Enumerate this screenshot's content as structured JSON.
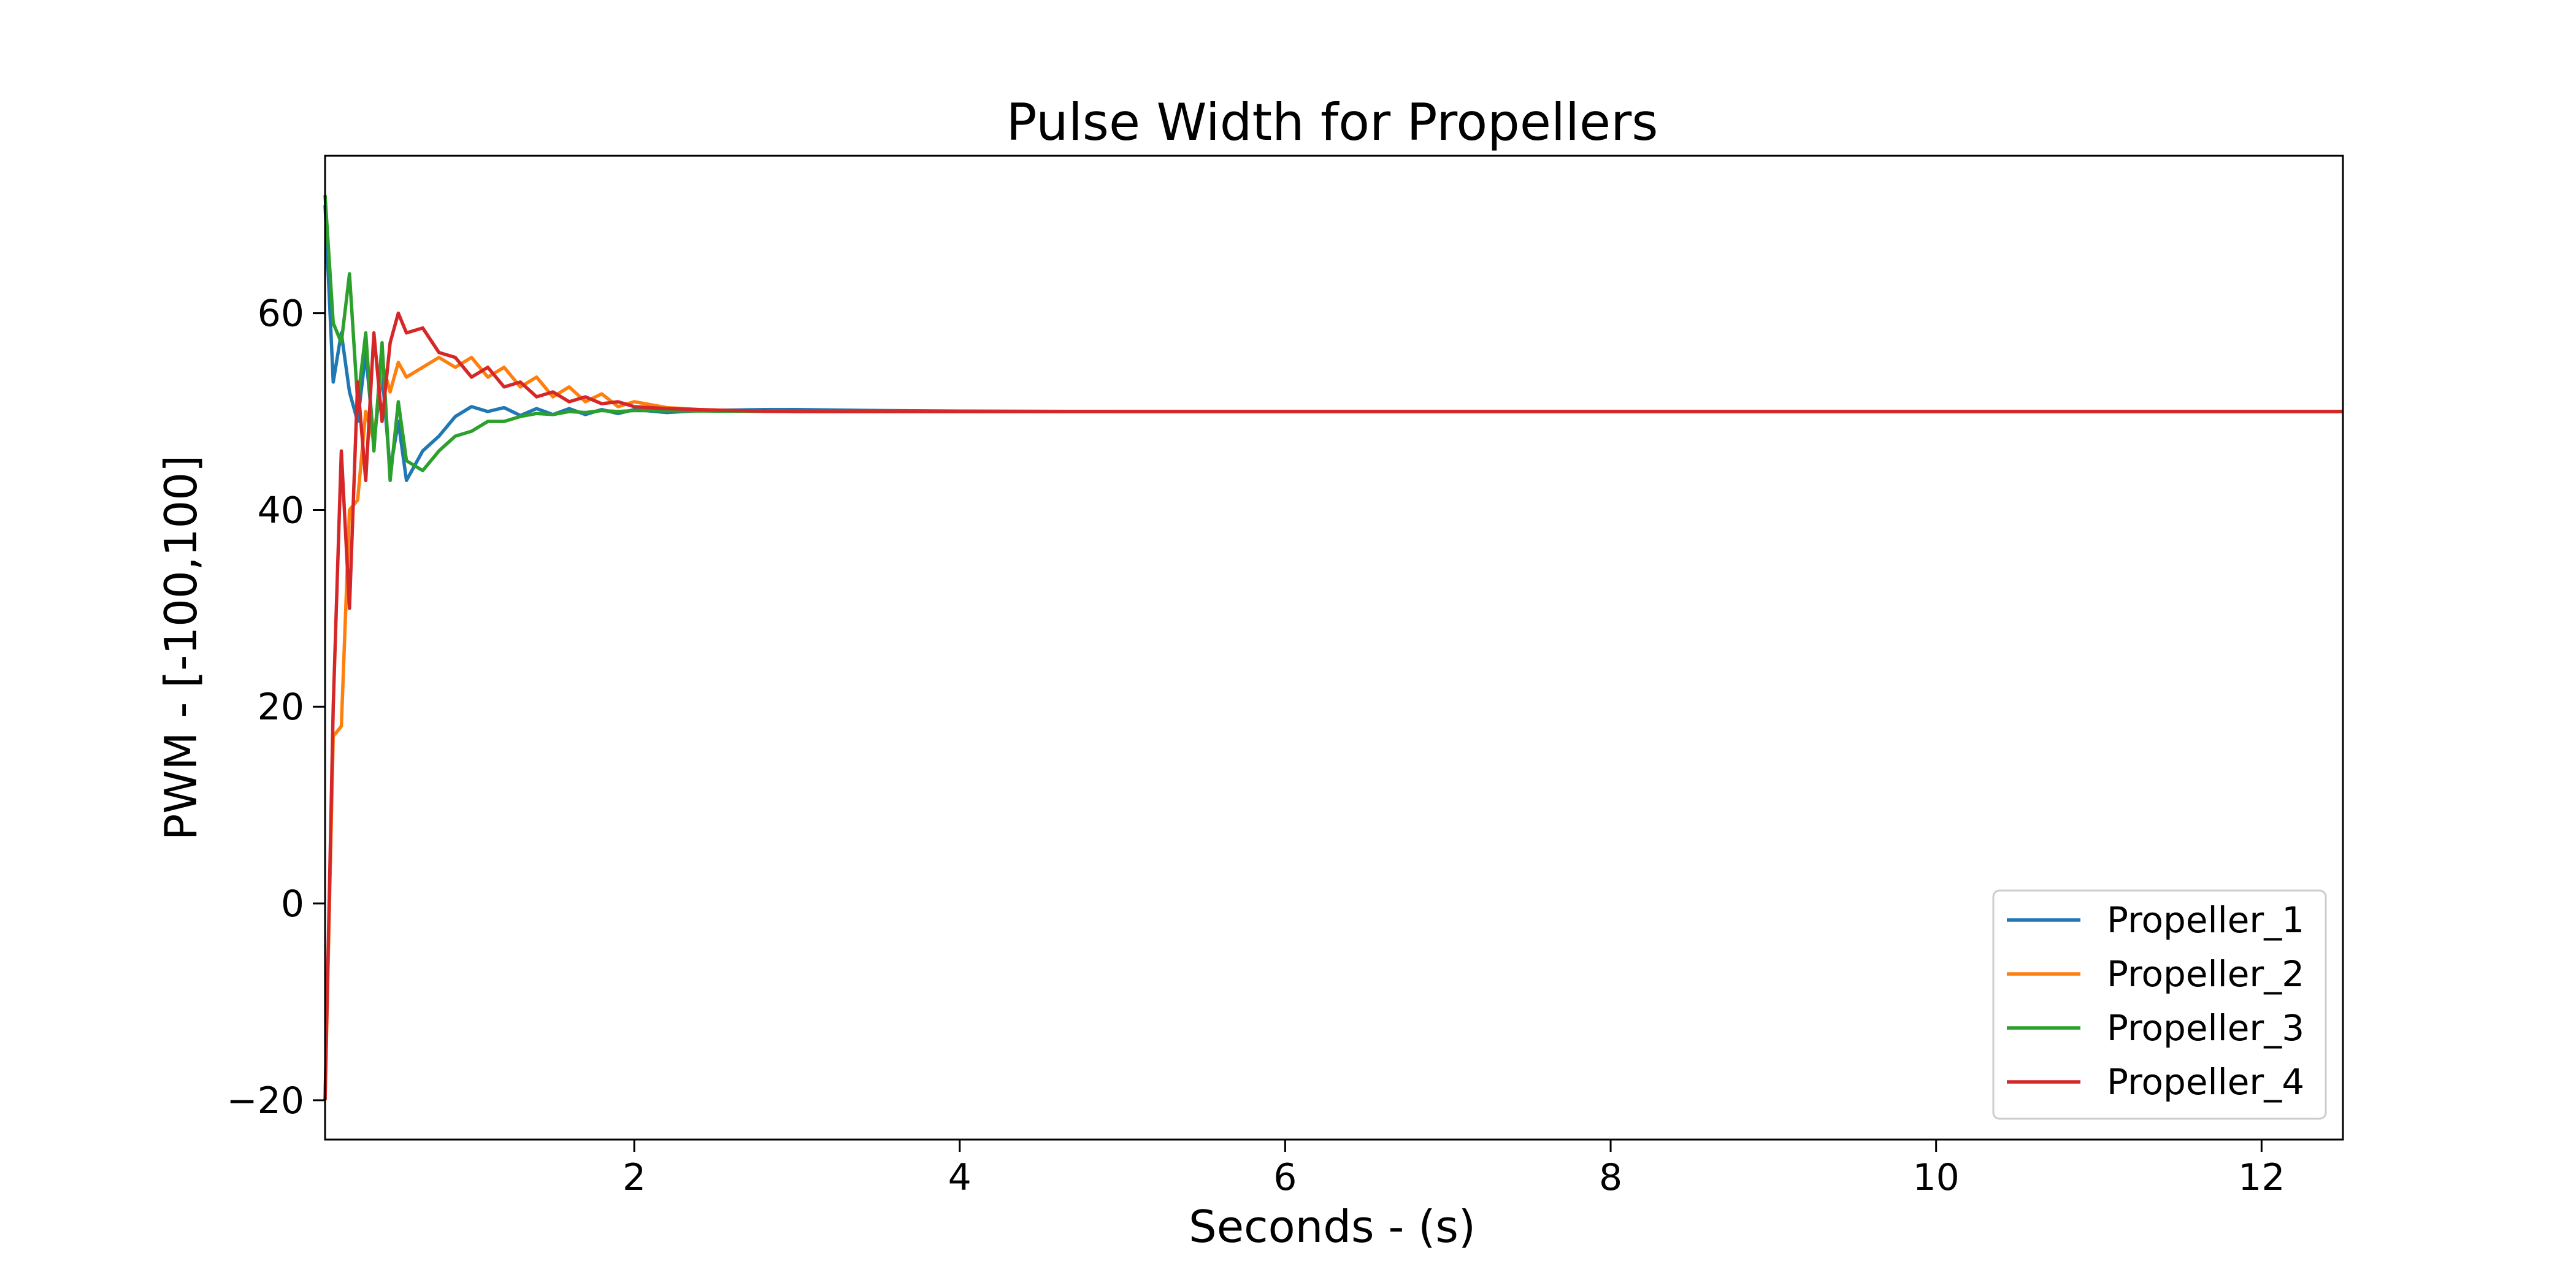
{
  "chart_data": {
    "type": "line",
    "title": "Pulse Width for Propellers",
    "xlabel": "Seconds - (s)",
    "ylabel": "PWM - [-100,100]",
    "xlim": [
      0.1,
      12.5
    ],
    "ylim": [
      -24,
      76
    ],
    "xticks": [
      2,
      4,
      6,
      8,
      10,
      12
    ],
    "yticks": [
      -20,
      0,
      20,
      40,
      60
    ],
    "xtick_labels": [
      "2",
      "4",
      "6",
      "8",
      "10",
      "12"
    ],
    "ytick_labels": [
      "−20",
      "0",
      "20",
      "40",
      "60"
    ],
    "grid": false,
    "legend_position": "bottom-right",
    "series": [
      {
        "name": "Propeller_1",
        "color": "#1f77b4",
        "points": [
          [
            0.1,
            71
          ],
          [
            0.15,
            53
          ],
          [
            0.2,
            58
          ],
          [
            0.25,
            52
          ],
          [
            0.3,
            49
          ],
          [
            0.35,
            56
          ],
          [
            0.4,
            47
          ],
          [
            0.45,
            54
          ],
          [
            0.5,
            44
          ],
          [
            0.55,
            49
          ],
          [
            0.6,
            43
          ],
          [
            0.7,
            46
          ],
          [
            0.8,
            47.5
          ],
          [
            0.9,
            49.5
          ],
          [
            1.0,
            50.5
          ],
          [
            1.1,
            50
          ],
          [
            1.2,
            50.4
          ],
          [
            1.3,
            49.6
          ],
          [
            1.4,
            50.3
          ],
          [
            1.5,
            49.7
          ],
          [
            1.6,
            50.3
          ],
          [
            1.7,
            49.7
          ],
          [
            1.8,
            50.2
          ],
          [
            1.9,
            49.8
          ],
          [
            2.0,
            50.2
          ],
          [
            2.2,
            49.9
          ],
          [
            2.4,
            50.1
          ],
          [
            2.6,
            50.15
          ],
          [
            2.8,
            50.2
          ],
          [
            3.0,
            50.2
          ],
          [
            3.5,
            50.1
          ],
          [
            4.0,
            50.05
          ],
          [
            5.0,
            50
          ],
          [
            12.5,
            50
          ]
        ]
      },
      {
        "name": "Propeller_2",
        "color": "#ff7f0e",
        "points": [
          [
            0.1,
            -20
          ],
          [
            0.15,
            17
          ],
          [
            0.2,
            18
          ],
          [
            0.25,
            40
          ],
          [
            0.3,
            41
          ],
          [
            0.35,
            50
          ],
          [
            0.4,
            47
          ],
          [
            0.45,
            55
          ],
          [
            0.5,
            52
          ],
          [
            0.55,
            55
          ],
          [
            0.6,
            53.5
          ],
          [
            0.7,
            54.5
          ],
          [
            0.8,
            55.5
          ],
          [
            0.9,
            54.5
          ],
          [
            1.0,
            55.5
          ],
          [
            1.1,
            53.5
          ],
          [
            1.2,
            54.5
          ],
          [
            1.3,
            52.5
          ],
          [
            1.4,
            53.5
          ],
          [
            1.5,
            51.5
          ],
          [
            1.6,
            52.5
          ],
          [
            1.7,
            51
          ],
          [
            1.8,
            51.8
          ],
          [
            1.9,
            50.5
          ],
          [
            2.0,
            51
          ],
          [
            2.2,
            50.4
          ],
          [
            2.4,
            50.2
          ],
          [
            2.6,
            50.1
          ],
          [
            2.8,
            50.05
          ],
          [
            3.0,
            50
          ],
          [
            12.5,
            50
          ]
        ]
      },
      {
        "name": "Propeller_3",
        "color": "#2ca02c",
        "points": [
          [
            0.1,
            72
          ],
          [
            0.15,
            59
          ],
          [
            0.2,
            57
          ],
          [
            0.25,
            64
          ],
          [
            0.3,
            51
          ],
          [
            0.35,
            58
          ],
          [
            0.4,
            46
          ],
          [
            0.45,
            57
          ],
          [
            0.5,
            43
          ],
          [
            0.55,
            51
          ],
          [
            0.6,
            45
          ],
          [
            0.7,
            44
          ],
          [
            0.8,
            46
          ],
          [
            0.9,
            47.5
          ],
          [
            1.0,
            48
          ],
          [
            1.1,
            49
          ],
          [
            1.2,
            49
          ],
          [
            1.3,
            49.5
          ],
          [
            1.4,
            49.8
          ],
          [
            1.5,
            49.7
          ],
          [
            1.6,
            50
          ],
          [
            1.7,
            49.9
          ],
          [
            1.8,
            50.1
          ],
          [
            1.9,
            50
          ],
          [
            2.0,
            50.1
          ],
          [
            2.5,
            50.05
          ],
          [
            3.0,
            50
          ],
          [
            12.5,
            50
          ]
        ]
      },
      {
        "name": "Propeller_4",
        "color": "#d62728",
        "points": [
          [
            0.1,
            -20
          ],
          [
            0.15,
            20
          ],
          [
            0.2,
            46
          ],
          [
            0.25,
            30
          ],
          [
            0.3,
            53
          ],
          [
            0.35,
            43
          ],
          [
            0.4,
            58
          ],
          [
            0.45,
            49
          ],
          [
            0.5,
            57
          ],
          [
            0.55,
            60
          ],
          [
            0.6,
            58
          ],
          [
            0.7,
            58.5
          ],
          [
            0.8,
            56
          ],
          [
            0.9,
            55.5
          ],
          [
            1.0,
            53.5
          ],
          [
            1.1,
            54.5
          ],
          [
            1.2,
            52.5
          ],
          [
            1.3,
            53
          ],
          [
            1.4,
            51.5
          ],
          [
            1.5,
            52
          ],
          [
            1.6,
            51
          ],
          [
            1.7,
            51.5
          ],
          [
            1.8,
            50.8
          ],
          [
            1.9,
            51
          ],
          [
            2.0,
            50.5
          ],
          [
            2.2,
            50.3
          ],
          [
            2.4,
            50.2
          ],
          [
            2.6,
            50.1
          ],
          [
            3.0,
            50
          ],
          [
            12.5,
            50
          ]
        ]
      }
    ]
  }
}
